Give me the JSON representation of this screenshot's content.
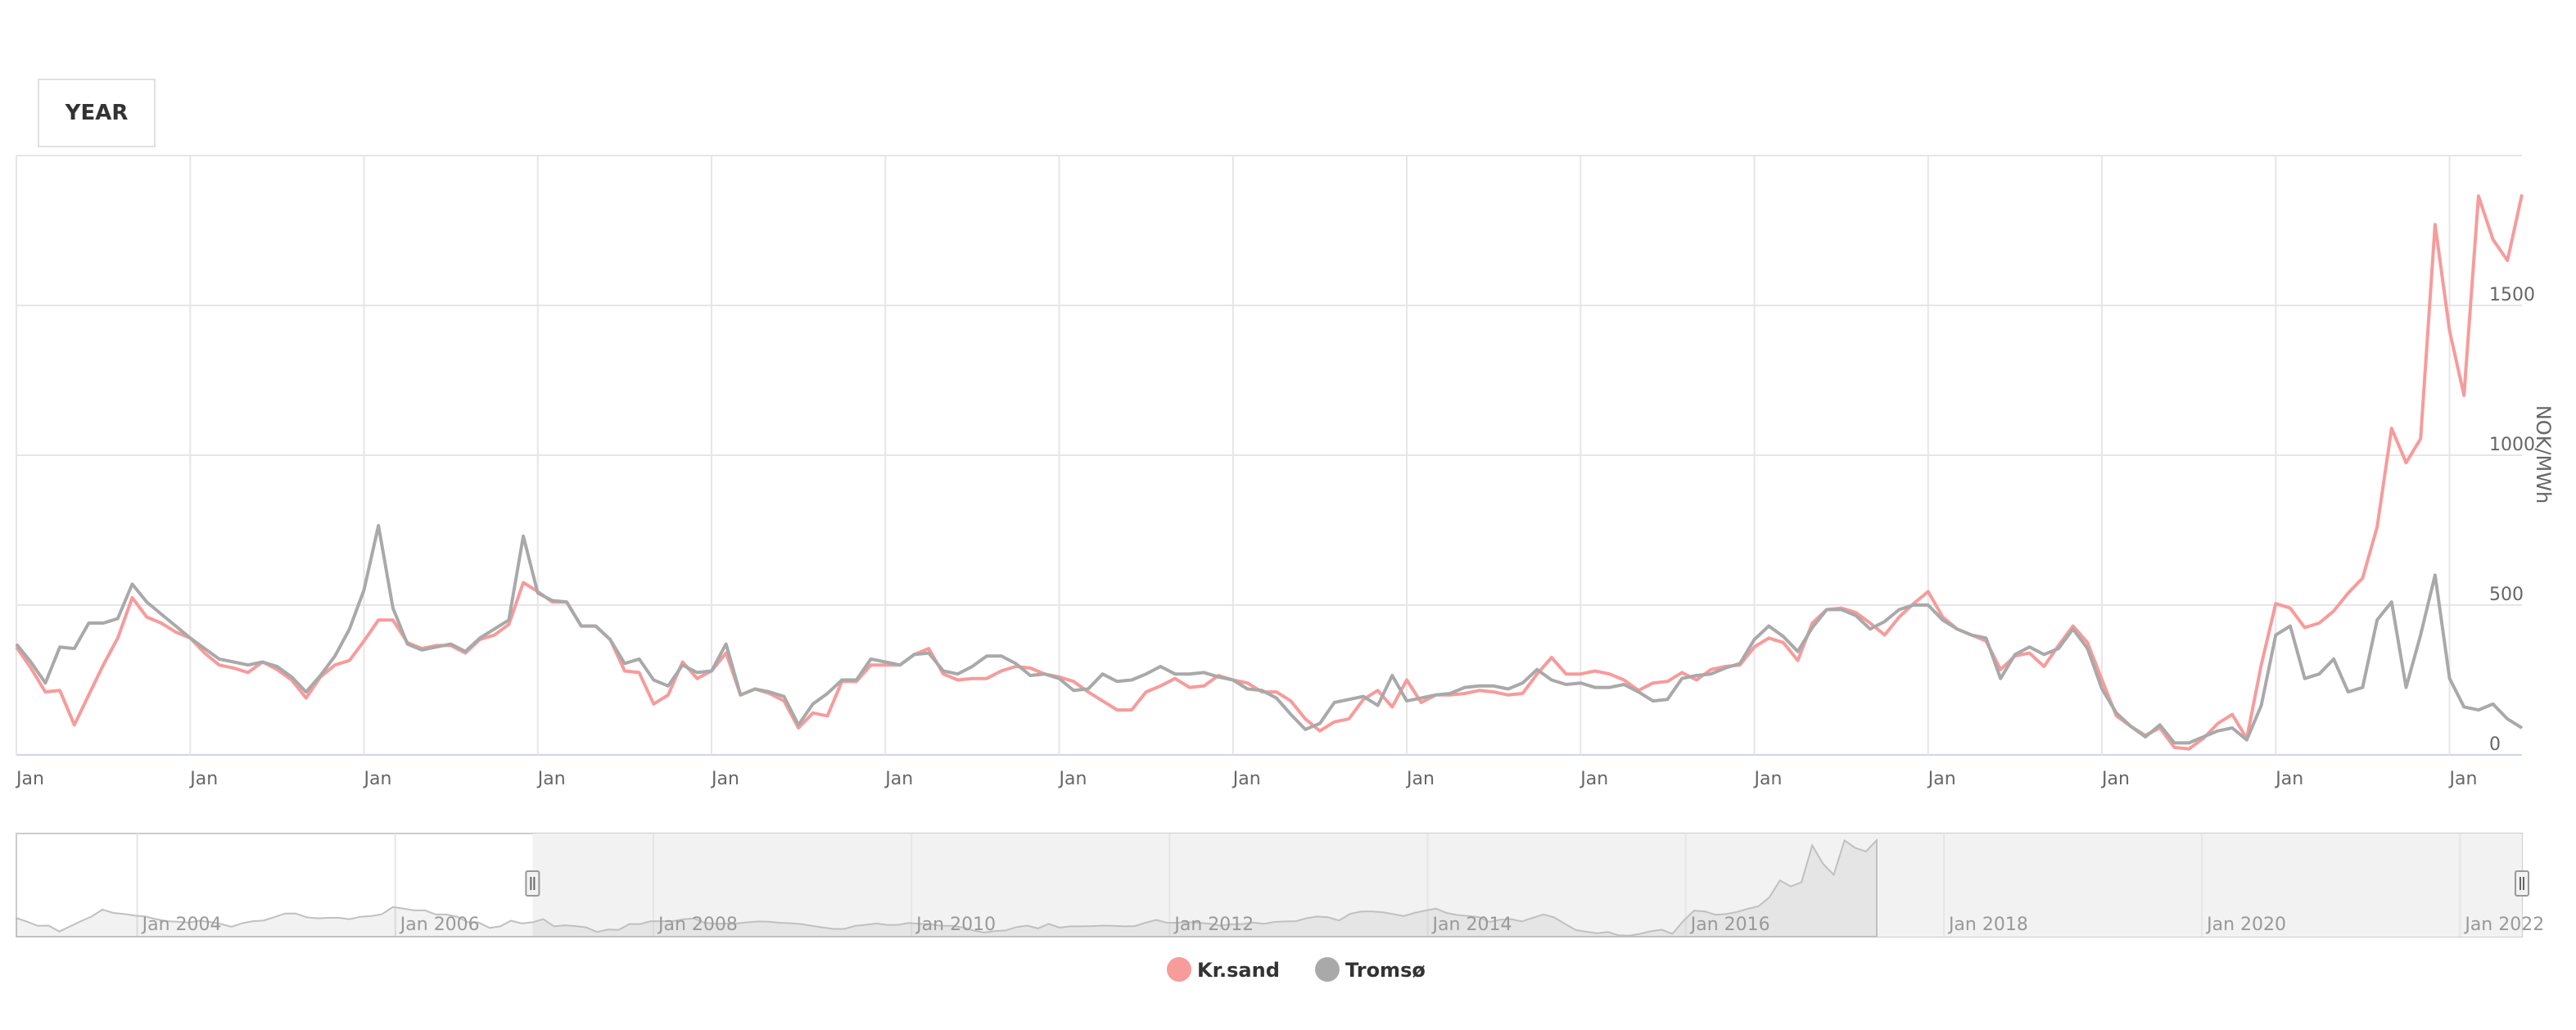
{
  "range_selector": {
    "label": "YEAR"
  },
  "chart_data": {
    "type": "line",
    "ylabel": "NOK/MWh",
    "ylim": [
      0,
      2000
    ],
    "y_ticks": [
      0,
      500,
      1000,
      1500
    ],
    "x_start": "2003-01",
    "x_end": "2022-06",
    "x_tick_labels": [
      "Jan",
      "Jan",
      "Jan",
      "Jan",
      "Jan",
      "Jan",
      "Jan",
      "Jan",
      "Jan",
      "Jan",
      "Jan",
      "Jan",
      "Jan",
      "Jan",
      "Jan"
    ],
    "x_tick_dates": [
      "2003-01",
      "2004-01",
      "2005-01",
      "2006-01",
      "2007-01",
      "2008-01",
      "2009-01",
      "2010-01",
      "2011-01",
      "2012-01",
      "2013-01",
      "2014-01",
      "2015-01",
      "2016-01",
      "2017-01"
    ],
    "main_window": [
      "2003-01",
      "2017-06"
    ],
    "navigator": {
      "labels": [
        "Jan 2004",
        "Jan 2006",
        "Jan 2008",
        "Jan 2010",
        "Jan 2012",
        "Jan 2014",
        "Jan 2016",
        "Jan 2018",
        "Jan 2020",
        "Jan 2022"
      ],
      "label_dates": [
        "2004-01",
        "2006-01",
        "2008-01",
        "2010-01",
        "2012-01",
        "2014-01",
        "2016-01",
        "2018-01",
        "2020-01",
        "2022-01"
      ],
      "selected_range": [
        "2007-01",
        "2022-06"
      ]
    },
    "grid": true,
    "legend_position": "bottom-center",
    "series": [
      {
        "name": "Kr.sand",
        "color": "#f79b9b",
        "values": [
          360,
          290,
          210,
          215,
          100,
          200,
          300,
          390,
          525,
          460,
          440,
          410,
          390,
          340,
          300,
          290,
          275,
          310,
          285,
          250,
          190,
          260,
          300,
          315,
          380,
          450,
          450,
          375,
          355,
          365,
          365,
          340,
          385,
          400,
          435,
          575,
          545,
          510,
          510,
          430,
          430,
          385,
          280,
          275,
          170,
          200,
          310,
          255,
          280,
          340,
          200,
          220,
          205,
          180,
          90,
          140,
          130,
          245,
          245,
          300,
          300,
          300,
          335,
          355,
          270,
          250,
          255,
          255,
          280,
          295,
          290,
          270,
          260,
          245,
          210,
          180,
          150,
          150,
          210,
          230,
          255,
          225,
          230,
          265,
          250,
          240,
          210,
          210,
          180,
          120,
          80,
          110,
          120,
          185,
          215,
          160,
          250,
          175,
          200,
          200,
          205,
          215,
          210,
          200,
          205,
          270,
          325,
          270,
          270,
          280,
          270,
          250,
          215,
          240,
          245,
          275,
          250,
          285,
          295,
          300,
          360,
          390,
          375,
          315,
          440,
          485,
          490,
          475,
          440,
          400,
          460,
          505,
          545,
          460,
          420,
          400,
          380,
          285,
          330,
          340,
          295,
          365,
          430,
          375,
          250,
          130,
          95,
          65,
          90,
          25,
          20,
          55,
          105,
          135,
          55,
          300,
          505,
          490,
          425,
          440,
          480,
          540,
          590,
          760,
          1090,
          975,
          1055,
          1770,
          1415,
          1200,
          1865,
          1720,
          1650,
          1870
        ]
      },
      {
        "name": "Tromsø",
        "color": "#a9a9a9",
        "values": [
          370,
          310,
          240,
          360,
          355,
          440,
          440,
          455,
          570,
          510,
          470,
          430,
          390,
          355,
          320,
          310,
          300,
          310,
          295,
          260,
          210,
          265,
          330,
          420,
          550,
          765,
          490,
          370,
          350,
          360,
          370,
          345,
          390,
          420,
          450,
          730,
          540,
          515,
          510,
          430,
          430,
          385,
          305,
          320,
          250,
          230,
          300,
          275,
          280,
          370,
          200,
          220,
          210,
          195,
          100,
          170,
          205,
          250,
          250,
          320,
          310,
          300,
          335,
          340,
          280,
          270,
          295,
          330,
          330,
          305,
          265,
          270,
          255,
          215,
          220,
          270,
          245,
          250,
          270,
          295,
          270,
          270,
          275,
          260,
          250,
          220,
          215,
          190,
          135,
          85,
          105,
          175,
          185,
          195,
          165,
          265,
          180,
          190,
          200,
          205,
          225,
          230,
          230,
          220,
          240,
          285,
          250,
          235,
          240,
          225,
          225,
          235,
          210,
          180,
          185,
          255,
          265,
          270,
          290,
          305,
          385,
          430,
          395,
          345,
          425,
          485,
          485,
          465,
          420,
          445,
          485,
          500,
          500,
          450,
          420,
          400,
          390,
          255,
          335,
          360,
          335,
          355,
          420,
          355,
          220,
          140,
          95,
          60,
          100,
          40,
          40,
          60,
          80,
          90,
          50,
          165,
          400,
          430,
          255,
          270,
          320,
          210,
          225,
          450,
          510,
          225,
          400,
          600,
          255,
          160,
          150,
          170,
          120,
          90
        ]
      }
    ]
  }
}
